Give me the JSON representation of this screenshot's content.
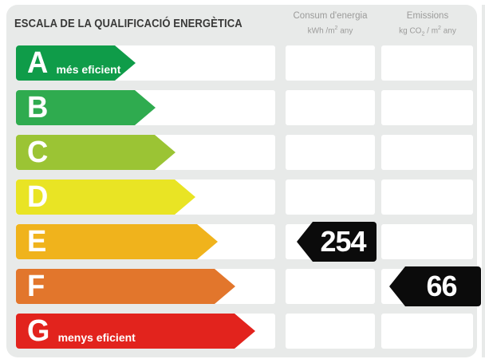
{
  "title": "ESCALA DE LA QUALIFICACIÓ ENERGÈTICA",
  "columns": {
    "consum": {
      "name": "Consum d'energia",
      "unit_parts": [
        {
          "t": "kWh /m"
        },
        {
          "sup": "2"
        },
        {
          "t": " any"
        }
      ]
    },
    "emissions": {
      "name": "Emissions",
      "unit_parts": [
        {
          "t": "kg CO"
        },
        {
          "sub": "2"
        },
        {
          "t": " / m"
        },
        {
          "sup": "2"
        },
        {
          "t": " any"
        }
      ]
    }
  },
  "scale": {
    "rows": [
      {
        "letter": "A",
        "note": "més eficient",
        "color": "#0f9c49",
        "arrow_width": 150
      },
      {
        "letter": "B",
        "note": "",
        "color": "#2fab4f",
        "arrow_width": 175
      },
      {
        "letter": "C",
        "note": "",
        "color": "#9bc434",
        "arrow_width": 200
      },
      {
        "letter": "D",
        "note": "",
        "color": "#e9e424",
        "arrow_width": 225
      },
      {
        "letter": "E",
        "note": "",
        "color": "#f0b31c",
        "arrow_width": 253
      },
      {
        "letter": "F",
        "note": "",
        "color": "#e2762c",
        "arrow_width": 275
      },
      {
        "letter": "G",
        "note": "menys eficient",
        "color": "#e2231d",
        "arrow_width": 300
      }
    ]
  },
  "values": {
    "consum": {
      "rating": "E",
      "value": "254"
    },
    "emissions": {
      "rating": "F",
      "value": "66"
    }
  },
  "colors": {
    "panel_background": "#e8eae9",
    "cell_background": "#ffffff",
    "value_arrow": "#0b0b0b",
    "title_text": "#393938",
    "header_text": "#9b9b9a"
  },
  "chart_data": {
    "type": "bar",
    "title": "ESCALA DE LA QUALIFICACIÓ ENERGÈTICA",
    "categories": [
      "A",
      "B",
      "C",
      "D",
      "E",
      "F",
      "G"
    ],
    "category_notes": {
      "A": "més eficient",
      "G": "menys eficient"
    },
    "scale_colors": [
      "#0f9c49",
      "#2fab4f",
      "#9bc434",
      "#e9e424",
      "#f0b31c",
      "#e2762c",
      "#e2231d"
    ],
    "series": [
      {
        "name": "Consum d'energia",
        "unit": "kWh/m2 any",
        "rating": "E",
        "value": 254
      },
      {
        "name": "Emissions",
        "unit": "kg CO2/m2 any",
        "rating": "F",
        "value": 66
      }
    ],
    "legend_position": "top",
    "grid": false
  }
}
